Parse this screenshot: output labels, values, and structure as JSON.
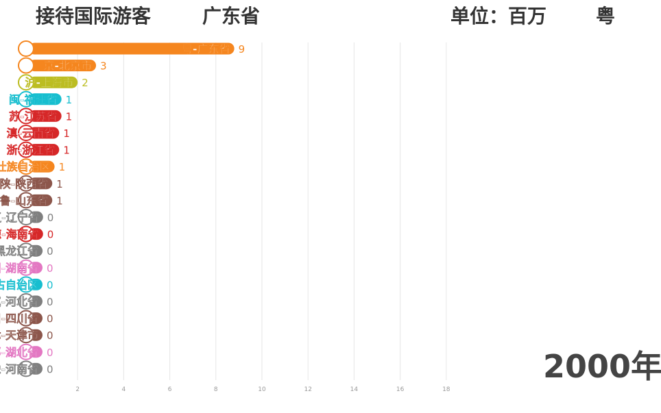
{
  "header": {
    "title": "接待国际游客",
    "subtitle": "广东省",
    "unit": "单位：百万",
    "current_abbr": "粤"
  },
  "year_label": "2000年",
  "chart_data": {
    "type": "bar",
    "orientation": "horizontal",
    "title": "接待国际游客",
    "unit": "单位：百万",
    "categories": [
      "粤-广东省",
      "京-北京市",
      "沪-上海市",
      "闽-福建省",
      "苏-江苏省",
      "滇-云南省",
      "浙-浙江省",
      "桂-广西壮族自治区",
      "陕-陕西省",
      "鲁-山东省",
      "辽-辽宁省",
      "琼-海南省",
      "黑-黑龙江省",
      "湘-湖南省",
      "蒙-内蒙古自治区",
      "冀-河北省",
      "川-四川省",
      "津-天津市",
      "鄂-湖北省",
      "豫-河南省"
    ],
    "values": [
      8.8,
      2.8,
      2.0,
      1.3,
      1.3,
      1.2,
      1.2,
      1.0,
      0.9,
      0.9,
      0.5,
      0.5,
      0.48,
      0.47,
      0.46,
      0.45,
      0.45,
      0.44,
      0.44,
      0.43
    ],
    "value_labels": [
      "9",
      "3",
      "2",
      "1",
      "1",
      "1",
      "1",
      "1",
      "1",
      "1",
      "0",
      "0",
      "0",
      "0",
      "0",
      "0",
      "0",
      "0",
      "0",
      "0"
    ],
    "colors": [
      "#f5861f",
      "#f5861f",
      "#bcbd22",
      "#17becf",
      "#d62728",
      "#d62728",
      "#d62728",
      "#f5861f",
      "#8c564b",
      "#8c564b",
      "#7f7f7f",
      "#d62728",
      "#7f7f7f",
      "#e377c2",
      "#17becf",
      "#7f7f7f",
      "#8c564b",
      "#8c564b",
      "#e377c2",
      "#7f7f7f"
    ],
    "x_ticks": [
      2,
      4,
      6,
      8,
      10,
      12,
      14,
      16,
      18
    ],
    "xlim": [
      0,
      18
    ],
    "grid": true,
    "legend": "none"
  }
}
